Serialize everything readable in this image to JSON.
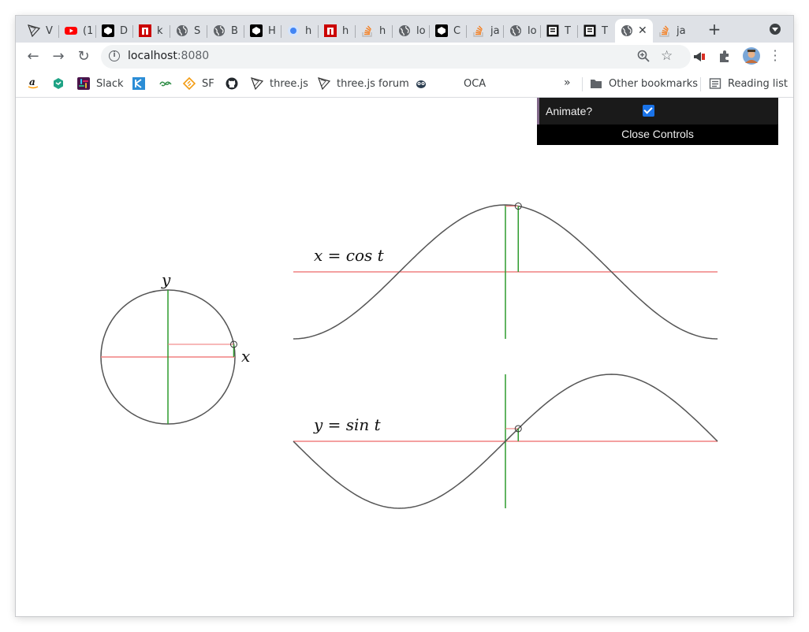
{
  "browser": {
    "tabs": [
      {
        "label": "V",
        "icon": "threejs-icon"
      },
      {
        "label": "(1",
        "icon": "youtube-icon"
      },
      {
        "label": "D",
        "icon": "codepen-icon"
      },
      {
        "label": "k",
        "icon": "npm-icon"
      },
      {
        "label": "S",
        "icon": "globe-icon"
      },
      {
        "label": "B",
        "icon": "globe-icon"
      },
      {
        "label": "H",
        "icon": "codepen-icon"
      },
      {
        "label": "h",
        "icon": "blue-dot-icon"
      },
      {
        "label": "h",
        "icon": "npm-icon"
      },
      {
        "label": "h",
        "icon": "stackoverflow-icon"
      },
      {
        "label": "lo",
        "icon": "globe-icon"
      },
      {
        "label": "C",
        "icon": "codepen-icon"
      },
      {
        "label": "ja",
        "icon": "stackoverflow-icon"
      },
      {
        "label": "lo",
        "icon": "globe-icon"
      },
      {
        "label": "T",
        "icon": "notebook-icon"
      },
      {
        "label": "T",
        "icon": "notebook-icon"
      },
      {
        "label": "",
        "icon": "globe-icon",
        "active": true
      },
      {
        "label": "ja",
        "icon": "stackoverflow-icon"
      }
    ],
    "address": {
      "host": "localhost",
      "port": ":8080"
    },
    "bookmarks": [
      {
        "label": "",
        "icon": "amazon-icon"
      },
      {
        "label": "",
        "icon": "cube-icon"
      },
      {
        "label": "Slack",
        "icon": "slack-icon"
      },
      {
        "label": "",
        "icon": "kotlin-icon"
      },
      {
        "label": "",
        "icon": "geeks-icon"
      },
      {
        "label": "SF",
        "icon": "sf-icon"
      },
      {
        "label": "",
        "icon": "github-icon"
      },
      {
        "label": "three.js",
        "icon": "threejs-icon"
      },
      {
        "label": "three.js forum",
        "icon": "threejs-icon"
      },
      {
        "label": "",
        "icon": "owl-icon"
      },
      {
        "label": "OCA",
        "icon": ""
      }
    ],
    "overflow_chevron": "»",
    "other_bookmarks": "Other bookmarks",
    "reading_list": "Reading list"
  },
  "controls": {
    "animate_label": "Animate?",
    "animate_checked": true,
    "close_label": "Close Controls"
  },
  "figure": {
    "circle_label_y": "y",
    "circle_label_x": "x",
    "cos_label": "x = cos t",
    "sin_label": "y = sin t",
    "t": 0.19,
    "colors": {
      "axis": "#f08080",
      "projection": "#2e9b2e",
      "curve": "#555555"
    }
  }
}
